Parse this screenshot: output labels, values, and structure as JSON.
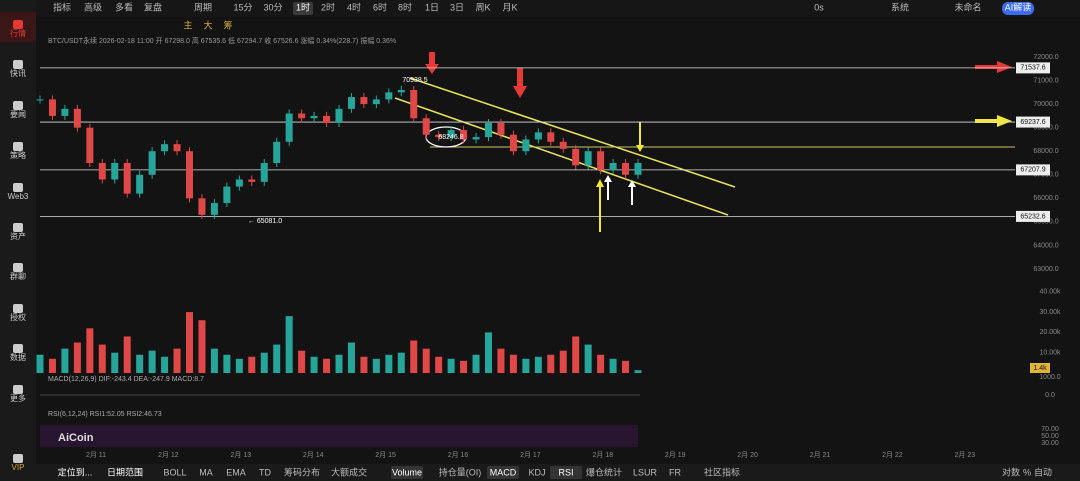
{
  "sidebar": [
    "行情",
    "快讯",
    "要闻",
    "策略",
    "Web3",
    "资产",
    "群聊",
    "授权",
    "数据",
    "更多",
    "VIP"
  ],
  "toolbar": {
    "left": [
      "指标",
      "高级",
      "多看",
      "复盘",
      "周期",
      "15分",
      "30分",
      "1时",
      "2时",
      "4时",
      "6时",
      "8时",
      "1日",
      "3日",
      "周K",
      "月K"
    ],
    "tools": [
      "主",
      "大",
      "筹"
    ],
    "right": [
      "0s",
      "系统",
      "未命名",
      "AI解读"
    ]
  },
  "info": "BTC/USDT永续 2026-02-18 11:00 开 67298.0 高 67535.6 低 67294.7 收 67526.6 涨幅 0.34%(228.7) 振幅 0.36%",
  "price_axis": {
    "ylim": [
      72000,
      63000
    ],
    "ticks": [
      {
        "value": 72000,
        "label": "72000.0"
      },
      {
        "value": 71000,
        "label": "71000.0"
      },
      {
        "value": 70000,
        "label": "70000.0"
      },
      {
        "value": 69000,
        "label": "69000.0"
      },
      {
        "value": 68000,
        "label": "68000.0"
      },
      {
        "value": 67000,
        "label": "67000.0"
      },
      {
        "value": 66000,
        "label": "66000.0"
      },
      {
        "value": 65000,
        "label": "65000.0"
      },
      {
        "value": 64000,
        "label": "64000.0"
      },
      {
        "value": 63000,
        "label": "63000.0"
      }
    ]
  },
  "levels": [
    71537.6,
    69237.6,
    67207.9,
    65232.6
  ],
  "annotations": [
    {
      "value": 70938.5,
      "label": "70938.5"
    },
    {
      "value": 68246.8,
      "label": "68246.8"
    },
    {
      "value": 65081.0,
      "label": "← 65081.0"
    }
  ],
  "volume_axis": {
    "ticks": [
      {
        "value": 40000,
        "label": "40.00k"
      },
      {
        "value": 30000,
        "label": "30.00k"
      },
      {
        "value": 20000,
        "label": "20.00k"
      },
      {
        "value": 10000,
        "label": "10.00k"
      }
    ],
    "current": {
      "value": 1400,
      "label": "1.4k"
    }
  },
  "macd": {
    "label": "MACD(12,26,9) DIF:-243.4 DEA:-247.9 MACD:8.7",
    "ticks": [
      {
        "value": 1000,
        "label": "1000.0"
      },
      {
        "value": 0,
        "label": "0.0"
      }
    ]
  },
  "rsi": {
    "label": "RSI(6,12,24) RSI1:52.05 RSI2:46.73",
    "ticks": [
      {
        "value": 70,
        "label": "70.00"
      },
      {
        "value": 50,
        "label": "50.00"
      },
      {
        "value": 30,
        "label": "30.00"
      }
    ]
  },
  "logo": "AiCoin",
  "dates": [
    "2月 11",
    "2月 12",
    "2月 13",
    "2月 14",
    "2月 15",
    "2月 16",
    "2月 17",
    "2月 18",
    "2月 19",
    "2月 20",
    "2月 21",
    "2月 22",
    "2月 23"
  ],
  "bottom_bar": {
    "left": [
      "定位到...",
      "日期范围",
      "BOLL",
      "MA",
      "EMA",
      "TD",
      "筹码分布",
      "大额成交",
      "Volume",
      "持仓量(OI)",
      "MACD",
      "KDJ",
      "RSI",
      "爆仓统计",
      "LSUR",
      "FR",
      "社区指标"
    ],
    "right": [
      "对数",
      "%",
      "自动"
    ]
  },
  "chart": {
    "closes": [
      70200,
      69500,
      69800,
      69000,
      67500,
      66800,
      67500,
      66200,
      67000,
      68000,
      68300,
      68000,
      66000,
      65300,
      65800,
      66500,
      66800,
      66700,
      67500,
      68400,
      69600,
      69400,
      69500,
      69200,
      69800,
      70300,
      70000,
      70200,
      70500,
      70600,
      69400,
      68700,
      68600,
      68900,
      68500,
      68600,
      69200,
      68700,
      68000,
      68500,
      68800,
      68400,
      68100,
      67400,
      68000,
      67200,
      67500,
      67000,
      67500
    ],
    "volumes": [
      9000,
      7000,
      12000,
      15000,
      22000,
      14000,
      10000,
      18000,
      9000,
      11000,
      8000,
      12000,
      30000,
      26000,
      12000,
      9000,
      7000,
      8000,
      10000,
      14000,
      28000,
      11000,
      8000,
      7000,
      9000,
      15000,
      8000,
      7000,
      9000,
      10000,
      16000,
      12000,
      8000,
      7000,
      6000,
      9000,
      20000,
      12000,
      9000,
      7000,
      8000,
      9000,
      11000,
      18000,
      14000,
      9000,
      7000,
      6000,
      1400
    ]
  }
}
